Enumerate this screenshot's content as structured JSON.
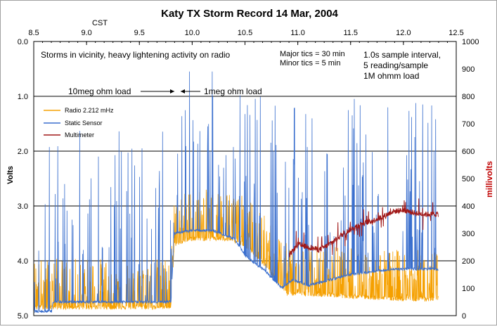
{
  "chart_data": {
    "type": "line",
    "title": "Katy TX Storm Record   14 Mar, 2004",
    "x_top_label": "CST",
    "y_left_label": "Volts",
    "y_right_label": "millivolts",
    "x_range": [
      8.5,
      12.5
    ],
    "x_ticks": [
      "8.5",
      "9.0",
      "9.5",
      "10.0",
      "10.5",
      "11.0",
      "11.5",
      "12.0",
      "12.5"
    ],
    "y_left_range": [
      0,
      5
    ],
    "y_left_inverted": true,
    "y_left_ticks": [
      "0.0",
      "1.0",
      "2.0",
      "3.0",
      "4.0",
      "5.0"
    ],
    "y_right_range": [
      0,
      1000
    ],
    "y_right_ticks": [
      "1000",
      "900",
      "800",
      "700",
      "600",
      "500",
      "400",
      "300",
      "200",
      "100",
      "0"
    ],
    "grid": "horizontal",
    "legend_position": "upper-left",
    "annotations": {
      "storm_note": "Storms in vicinity, heavy lightening activity on radio",
      "load_10meg": "10meg ohm load",
      "load_1meg": "1meg ohm load",
      "tics_major": "Major tics =  30 min",
      "tics_minor": "Minor tics =    5 min",
      "sample_line1": "1.0s sample interval,",
      "sample_line2": "5 reading/sample",
      "sample_line3": "1M ohmm load"
    },
    "series": [
      {
        "name": "Radio  2.212 mHz",
        "color": "#F5A000",
        "axis": "left",
        "x": [
          8.5,
          9.0,
          9.5,
          9.8,
          9.83,
          10.0,
          10.3,
          10.5,
          10.7,
          10.9,
          11.1,
          11.5,
          12.0,
          12.33
        ],
        "y": [
          4.85,
          4.85,
          4.85,
          4.85,
          3.7,
          3.6,
          3.6,
          3.7,
          4.1,
          4.6,
          4.6,
          4.65,
          4.7,
          4.7
        ]
      },
      {
        "name": "Static Sensor",
        "color": "#3A6FCE",
        "axis": "left",
        "x": [
          8.5,
          8.67,
          8.68,
          9.0,
          9.5,
          9.8,
          9.83,
          10.0,
          10.2,
          10.4,
          10.5,
          10.7,
          10.85,
          10.95,
          11.1,
          11.3,
          11.5,
          11.7,
          11.9,
          12.1,
          12.33
        ],
        "y": [
          4.92,
          4.92,
          4.75,
          4.75,
          4.75,
          4.75,
          3.5,
          3.45,
          3.45,
          3.6,
          3.9,
          4.2,
          4.5,
          4.35,
          4.45,
          4.35,
          4.25,
          4.2,
          4.15,
          4.15,
          4.15
        ]
      },
      {
        "name": "Multimeter",
        "color": "#A01818",
        "axis": "right",
        "x": [
          10.92,
          11.0,
          11.1,
          11.2,
          11.3,
          11.4,
          11.5,
          11.6,
          11.7,
          11.8,
          11.9,
          12.0,
          12.1,
          12.2,
          12.33
        ],
        "y": [
          220,
          260,
          250,
          240,
          260,
          290,
          315,
          335,
          345,
          360,
          380,
          385,
          375,
          370,
          370
        ]
      }
    ]
  }
}
